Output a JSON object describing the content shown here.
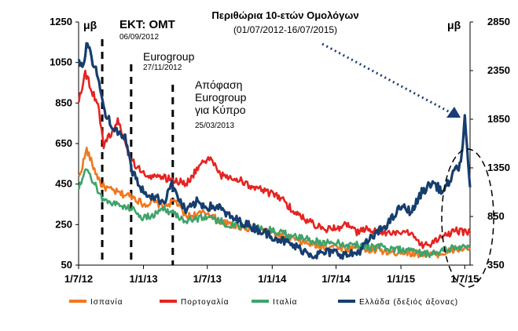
{
  "chart_data": {
    "type": "line",
    "title": "Περιθώρια 10-ετών Ομολόγων",
    "subtitle": "(01/07/2012-16/07/2015)",
    "left_axis_unit": "μβ",
    "right_axis_unit": "μβ",
    "x_ticks": [
      "1/7/12",
      "1/1/13",
      "1/7/13",
      "1/1/14",
      "1/7/14",
      "1/1/15",
      "1/7/15"
    ],
    "y_left": {
      "min": 50,
      "max": 1250,
      "ticks": [
        "1250",
        "1050",
        "850",
        "650",
        "450",
        "250",
        "50"
      ]
    },
    "y_right": {
      "min": 350,
      "max": 2850,
      "ticks": [
        "2850",
        "2350",
        "1850",
        "1350",
        "850",
        "350"
      ]
    },
    "annotations": [
      {
        "date": "2012-09-06",
        "title": "ΕΚΤ: OMT",
        "date_label": "06/09/2012"
      },
      {
        "date": "2012-11-27",
        "title": "Eurogroup",
        "date_label": "27/11/2012"
      },
      {
        "date": "2013-03-25",
        "title_lines": [
          "Απόφαση",
          "Eurogroup",
          "για Κύπρο"
        ],
        "date_label": "25/03/2013"
      }
    ],
    "series": [
      {
        "name": "Ισπανία",
        "axis": "left",
        "color": "#f07820",
        "points": [
          [
            "2012-07-02",
            480
          ],
          [
            "2012-07-24",
            620
          ],
          [
            "2012-08-15",
            520
          ],
          [
            "2012-09-06",
            440
          ],
          [
            "2012-10-01",
            420
          ],
          [
            "2012-11-01",
            400
          ],
          [
            "2012-12-01",
            390
          ],
          [
            "2013-01-01",
            350
          ],
          [
            "2013-02-01",
            360
          ],
          [
            "2013-03-01",
            340
          ],
          [
            "2013-04-01",
            370
          ],
          [
            "2013-05-01",
            290
          ],
          [
            "2013-06-01",
            300
          ],
          [
            "2013-07-01",
            310
          ],
          [
            "2013-08-01",
            270
          ],
          [
            "2013-09-01",
            250
          ],
          [
            "2013-10-01",
            240
          ],
          [
            "2013-11-01",
            230
          ],
          [
            "2013-12-01",
            230
          ],
          [
            "2014-01-01",
            210
          ],
          [
            "2014-02-01",
            190
          ],
          [
            "2014-03-01",
            180
          ],
          [
            "2014-04-01",
            160
          ],
          [
            "2014-05-01",
            150
          ],
          [
            "2014-06-01",
            140
          ],
          [
            "2014-07-01",
            145
          ],
          [
            "2014-08-01",
            130
          ],
          [
            "2014-09-01",
            140
          ],
          [
            "2014-10-01",
            120
          ],
          [
            "2014-11-01",
            125
          ],
          [
            "2014-12-01",
            110
          ],
          [
            "2015-01-01",
            115
          ],
          [
            "2015-02-01",
            110
          ],
          [
            "2015-03-01",
            105
          ],
          [
            "2015-04-01",
            100
          ],
          [
            "2015-05-01",
            110
          ],
          [
            "2015-06-01",
            125
          ],
          [
            "2015-07-16",
            135
          ]
        ]
      },
      {
        "name": "Πορτογαλία",
        "axis": "left",
        "color": "#e52420",
        "points": [
          [
            "2012-07-02",
            870
          ],
          [
            "2012-07-20",
            1000
          ],
          [
            "2012-08-10",
            900
          ],
          [
            "2012-08-25",
            850
          ],
          [
            "2012-09-10",
            640
          ],
          [
            "2012-10-01",
            700
          ],
          [
            "2012-10-20",
            760
          ],
          [
            "2012-11-10",
            650
          ],
          [
            "2012-12-01",
            560
          ],
          [
            "2013-01-01",
            500
          ],
          [
            "2013-02-01",
            490
          ],
          [
            "2013-03-01",
            480
          ],
          [
            "2013-04-01",
            470
          ],
          [
            "2013-05-01",
            450
          ],
          [
            "2013-06-01",
            520
          ],
          [
            "2013-07-10",
            590
          ],
          [
            "2013-08-01",
            500
          ],
          [
            "2013-09-01",
            480
          ],
          [
            "2013-10-01",
            470
          ],
          [
            "2013-11-01",
            440
          ],
          [
            "2013-12-01",
            420
          ],
          [
            "2014-01-01",
            400
          ],
          [
            "2014-02-01",
            370
          ],
          [
            "2014-03-01",
            320
          ],
          [
            "2014-04-01",
            280
          ],
          [
            "2014-05-01",
            250
          ],
          [
            "2014-06-01",
            230
          ],
          [
            "2014-07-01",
            230
          ],
          [
            "2014-08-01",
            250
          ],
          [
            "2014-09-01",
            210
          ],
          [
            "2014-10-01",
            230
          ],
          [
            "2014-11-01",
            210
          ],
          [
            "2014-12-01",
            210
          ],
          [
            "2015-01-01",
            200
          ],
          [
            "2015-02-01",
            210
          ],
          [
            "2015-03-01",
            150
          ],
          [
            "2015-04-01",
            160
          ],
          [
            "2015-05-01",
            190
          ],
          [
            "2015-06-01",
            220
          ],
          [
            "2015-07-16",
            210
          ]
        ]
      },
      {
        "name": "Ιταλία",
        "axis": "left",
        "color": "#3fa36b",
        "points": [
          [
            "2012-07-02",
            430
          ],
          [
            "2012-07-24",
            520
          ],
          [
            "2012-08-15",
            450
          ],
          [
            "2012-09-06",
            380
          ],
          [
            "2012-10-01",
            360
          ],
          [
            "2012-11-01",
            340
          ],
          [
            "2012-12-01",
            330
          ],
          [
            "2013-01-01",
            280
          ],
          [
            "2013-02-01",
            300
          ],
          [
            "2013-03-01",
            330
          ],
          [
            "2013-04-01",
            300
          ],
          [
            "2013-05-01",
            270
          ],
          [
            "2013-06-01",
            280
          ],
          [
            "2013-07-01",
            290
          ],
          [
            "2013-08-01",
            270
          ],
          [
            "2013-09-01",
            250
          ],
          [
            "2013-10-01",
            240
          ],
          [
            "2013-11-01",
            240
          ],
          [
            "2013-12-01",
            230
          ],
          [
            "2014-01-01",
            220
          ],
          [
            "2014-02-01",
            210
          ],
          [
            "2014-03-01",
            190
          ],
          [
            "2014-04-01",
            180
          ],
          [
            "2014-05-01",
            170
          ],
          [
            "2014-06-01",
            160
          ],
          [
            "2014-07-01",
            165
          ],
          [
            "2014-08-01",
            150
          ],
          [
            "2014-09-01",
            150
          ],
          [
            "2014-10-01",
            140
          ],
          [
            "2014-11-01",
            140
          ],
          [
            "2014-12-01",
            130
          ],
          [
            "2015-01-01",
            130
          ],
          [
            "2015-02-01",
            120
          ],
          [
            "2015-03-01",
            110
          ],
          [
            "2015-04-01",
            105
          ],
          [
            "2015-05-01",
            120
          ],
          [
            "2015-06-01",
            135
          ],
          [
            "2015-07-16",
            145
          ]
        ]
      },
      {
        "name": "Ελλάδα (δεξιός άξονας)",
        "axis": "right",
        "color": "#163e6e",
        "points": [
          [
            "2012-07-02",
            2450
          ],
          [
            "2012-07-15",
            2400
          ],
          [
            "2012-07-26",
            2650
          ],
          [
            "2012-08-10",
            2450
          ],
          [
            "2012-08-25",
            2300
          ],
          [
            "2012-09-10",
            1950
          ],
          [
            "2012-10-01",
            1800
          ],
          [
            "2012-10-20",
            1700
          ],
          [
            "2012-11-10",
            1650
          ],
          [
            "2012-12-01",
            1300
          ],
          [
            "2013-01-01",
            1100
          ],
          [
            "2013-02-01",
            1050
          ],
          [
            "2013-03-01",
            1000
          ],
          [
            "2013-03-20",
            1200
          ],
          [
            "2013-04-01",
            1100
          ],
          [
            "2013-05-01",
            900
          ],
          [
            "2013-06-01",
            1000
          ],
          [
            "2013-07-01",
            950
          ],
          [
            "2013-08-01",
            950
          ],
          [
            "2013-09-01",
            850
          ],
          [
            "2013-10-01",
            800
          ],
          [
            "2013-11-01",
            750
          ],
          [
            "2013-12-01",
            700
          ],
          [
            "2014-01-01",
            650
          ],
          [
            "2014-02-01",
            600
          ],
          [
            "2014-03-01",
            550
          ],
          [
            "2014-04-01",
            500
          ],
          [
            "2014-05-01",
            450
          ],
          [
            "2014-06-01",
            480
          ],
          [
            "2014-07-01",
            480
          ],
          [
            "2014-08-01",
            450
          ],
          [
            "2014-09-01",
            480
          ],
          [
            "2014-10-01",
            600
          ],
          [
            "2014-11-01",
            700
          ],
          [
            "2014-12-01",
            800
          ],
          [
            "2015-01-01",
            950
          ],
          [
            "2015-02-01",
            900
          ],
          [
            "2015-03-01",
            1100
          ],
          [
            "2015-04-01",
            1200
          ],
          [
            "2015-05-01",
            1100
          ],
          [
            "2015-06-01",
            1300
          ],
          [
            "2015-06-20",
            1400
          ],
          [
            "2015-07-01",
            1850
          ],
          [
            "2015-07-08",
            1500
          ],
          [
            "2015-07-16",
            1150
          ]
        ]
      }
    ],
    "legend": "bottom"
  }
}
